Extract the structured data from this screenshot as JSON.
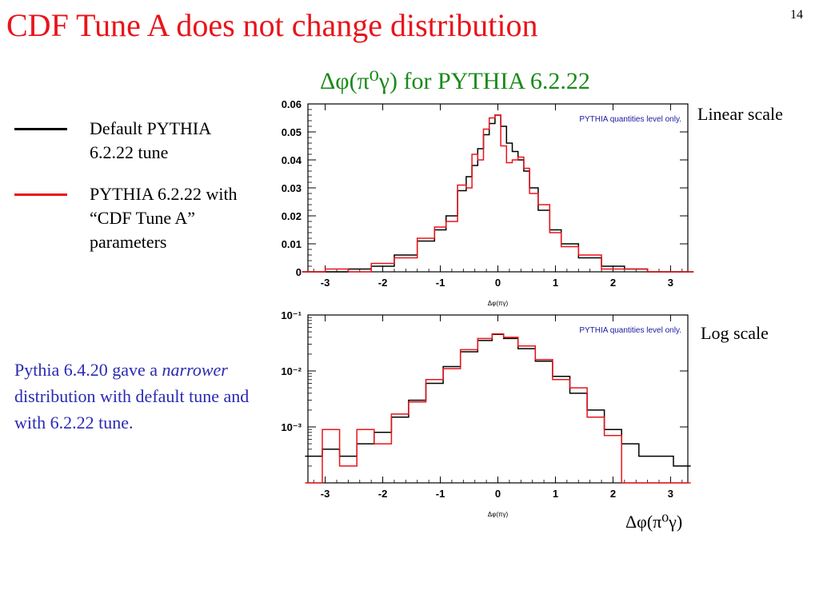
{
  "slide": {
    "title": "CDF Tune A does not change distribution",
    "page_number": "14",
    "subtitle": "Δφ(π⁰γ) for PYTHIA 6.2.22"
  },
  "legend": {
    "items": [
      {
        "text": "Default PYTHIA 6.2.22 tune",
        "color": "#000000"
      },
      {
        "text": "PYTHIA 6.2.22 with “CDF Tune A” parameters",
        "color": "#e8141a"
      }
    ]
  },
  "note": {
    "before": "Pythia 6.4.20 gave a ",
    "emphasis": "narrower",
    "after": " distribution with default tune and with 6.2.22 tune."
  },
  "labels": {
    "linear": "Linear scale",
    "log": "Log scale",
    "bottom": "Δφ(π⁰γ)"
  },
  "colors": {
    "title": "#e8141a",
    "subtitle": "#1a8a1a",
    "note": "#2a2ab4",
    "series_default": "#000000",
    "series_tuneA": "#e8141a",
    "annotation": "#1a1aa0"
  },
  "chart_data": [
    {
      "type": "line",
      "scale": "linear",
      "xlabel": "Δφ(πγ)",
      "ylabel": "",
      "xlim": [
        -3.3,
        3.3
      ],
      "ylim": [
        0,
        0.06
      ],
      "xticks": [
        "-3",
        "-2",
        "-1",
        "0",
        "1",
        "2",
        "3"
      ],
      "yticks": [
        "0",
        "0.01",
        "0.02",
        "0.03",
        "0.04",
        "0.05",
        "0.06"
      ],
      "annotation": "PYTHIA quantities level only.",
      "x": [
        -3.2,
        -2.8,
        -2.4,
        -2.0,
        -1.6,
        -1.2,
        -1.0,
        -0.8,
        -0.6,
        -0.5,
        -0.4,
        -0.3,
        -0.2,
        -0.1,
        0.0,
        0.1,
        0.2,
        0.3,
        0.4,
        0.5,
        0.6,
        0.8,
        1.0,
        1.2,
        1.6,
        2.0,
        2.4,
        2.8,
        3.2
      ],
      "series": [
        {
          "values": [
            0.0,
            0.0,
            0.001,
            0.002,
            0.006,
            0.011,
            0.015,
            0.02,
            0.029,
            0.034,
            0.038,
            0.044,
            0.049,
            0.053,
            0.056,
            0.052,
            0.046,
            0.043,
            0.04,
            0.036,
            0.03,
            0.022,
            0.015,
            0.01,
            0.005,
            0.002,
            0.001,
            0.0,
            0.0
          ]
        },
        {
          "values": [
            0.0,
            0.001,
            0.0,
            0.003,
            0.005,
            0.012,
            0.016,
            0.018,
            0.031,
            0.03,
            0.042,
            0.04,
            0.051,
            0.055,
            0.056,
            0.045,
            0.039,
            0.04,
            0.041,
            0.037,
            0.028,
            0.024,
            0.014,
            0.009,
            0.006,
            0.001,
            0.001,
            0.0,
            0.0
          ]
        }
      ]
    },
    {
      "type": "line",
      "scale": "log",
      "xlabel": "Δφ(πγ)",
      "ylabel": "",
      "xlim": [
        -3.3,
        3.3
      ],
      "ylim": [
        0.0001,
        0.1
      ],
      "xticks": [
        "-3",
        "-2",
        "-1",
        "0",
        "1",
        "2",
        "3"
      ],
      "yticks": [
        "10⁻¹",
        "10⁻²",
        "10⁻³"
      ],
      "annotation": "PYTHIA quantities level only.",
      "x": [
        -3.2,
        -2.9,
        -2.6,
        -2.3,
        -2.0,
        -1.7,
        -1.4,
        -1.1,
        -0.8,
        -0.5,
        -0.2,
        0.0,
        0.2,
        0.5,
        0.8,
        1.1,
        1.4,
        1.7,
        2.0,
        2.3,
        2.6,
        2.9,
        3.2
      ],
      "series": [
        {
          "values": [
            0.0003,
            0.0004,
            0.0003,
            0.0005,
            0.0008,
            0.0015,
            0.003,
            0.006,
            0.012,
            0.022,
            0.035,
            0.045,
            0.038,
            0.025,
            0.015,
            0.008,
            0.004,
            0.002,
            0.0009,
            0.0005,
            0.0003,
            0.0003,
            0.0002
          ]
        },
        {
          "values": [
            0.0001,
            0.0009,
            0.0002,
            0.0009,
            0.0005,
            0.0017,
            0.0028,
            0.007,
            0.011,
            0.024,
            0.038,
            0.046,
            0.04,
            0.028,
            0.016,
            0.007,
            0.005,
            0.0015,
            0.0007,
            0.0001,
            0.0001,
            0.0001,
            0.0001
          ]
        }
      ]
    }
  ]
}
